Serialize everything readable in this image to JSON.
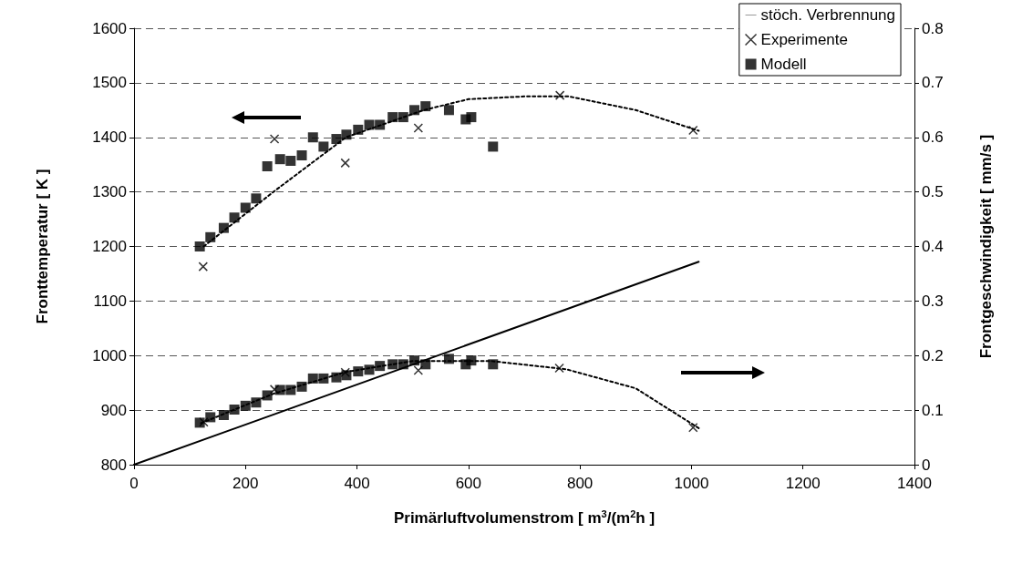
{
  "chart_data": {
    "type": "scatter",
    "xlabel": "Primärluftvolumenstrom [ m$^{3}$/(m$^{2}$h ]",
    "ylabel": "Fronttemperatur [ K ]",
    "y2label": "Frontgeschwindigkeit [ mm/s ]",
    "xlim": [
      0,
      1400
    ],
    "xticks": [
      0,
      200,
      400,
      600,
      800,
      1000,
      1200,
      1400
    ],
    "ylim": [
      800,
      1600
    ],
    "yticks": [
      800,
      900,
      1000,
      1100,
      1200,
      1300,
      1400,
      1500,
      1600
    ],
    "y2lim": [
      0,
      0.8
    ],
    "y2ticks": [
      0,
      0.1,
      0.2,
      0.3,
      0.4,
      0.5,
      0.6,
      0.7,
      0.8
    ],
    "grid": "y",
    "legend": "top right",
    "series": [
      {
        "name": "stöch. Verbrennung",
        "type": "line",
        "marker": "none",
        "line_style": "solid",
        "color": "#000000",
        "axis": "y2",
        "x": [
          0,
          1013
        ],
        "values": [
          0,
          0.372
        ]
      },
      {
        "name": "Experimente",
        "marker": "cross",
        "color": "#000000",
        "x": [
          124,
          252,
          379,
          510,
          764,
          1003
        ],
        "values": [
          1163,
          1397,
          1353,
          1417,
          1477,
          1413
        ]
      },
      {
        "name": "Modell",
        "marker": "square",
        "color": "#000000",
        "x": [
          118,
          137,
          161,
          180,
          200,
          219,
          239,
          262,
          281,
          301,
          321,
          340,
          363,
          381,
          402,
          422,
          441,
          464,
          483,
          503,
          523,
          565,
          595,
          605,
          644
        ],
        "values": [
          1200,
          1217,
          1234,
          1253,
          1271,
          1288,
          1347,
          1360,
          1357,
          1367,
          1400,
          1383,
          1397,
          1405,
          1414,
          1423,
          1423,
          1437,
          1437,
          1450,
          1457,
          1450,
          1433,
          1437,
          1383
        ]
      },
      {
        "marker": "cross",
        "color": "#000000",
        "axis": "y2",
        "x": [
          125,
          252,
          379,
          510,
          763,
          1003
        ],
        "values": [
          0.078,
          0.138,
          0.169,
          0.173,
          0.177,
          0.068
        ]
      },
      {
        "marker": "square",
        "color": "#000000",
        "axis": "y2",
        "x": [
          118,
          137,
          161,
          180,
          200,
          219,
          239,
          262,
          281,
          301,
          321,
          340,
          363,
          381,
          402,
          422,
          441,
          464,
          483,
          503,
          523,
          565,
          595,
          605,
          644
        ],
        "values": [
          0.077,
          0.087,
          0.091,
          0.101,
          0.108,
          0.114,
          0.127,
          0.137,
          0.137,
          0.143,
          0.158,
          0.158,
          0.16,
          0.164,
          0.171,
          0.174,
          0.181,
          0.184,
          0.184,
          0.191,
          0.184,
          0.194,
          0.184,
          0.191,
          0.184
        ]
      },
      {
        "type": "line",
        "marker": "none",
        "line_style": "dotted",
        "color": "#000000",
        "x": [
          125,
          250,
          380,
          520,
          600,
          700,
          780,
          900,
          1013
        ],
        "values": [
          1200,
          1300,
          1400,
          1450,
          1470,
          1475,
          1475,
          1450,
          1412
        ]
      },
      {
        "type": "line",
        "marker": "none",
        "line_style": "dotted",
        "color": "#000000",
        "axis": "y2",
        "x": [
          120,
          250,
          380,
          500,
          640,
          775,
          900,
          1013
        ],
        "values": [
          0.076,
          0.13,
          0.17,
          0.19,
          0.19,
          0.175,
          0.14,
          0.067
        ]
      }
    ]
  }
}
